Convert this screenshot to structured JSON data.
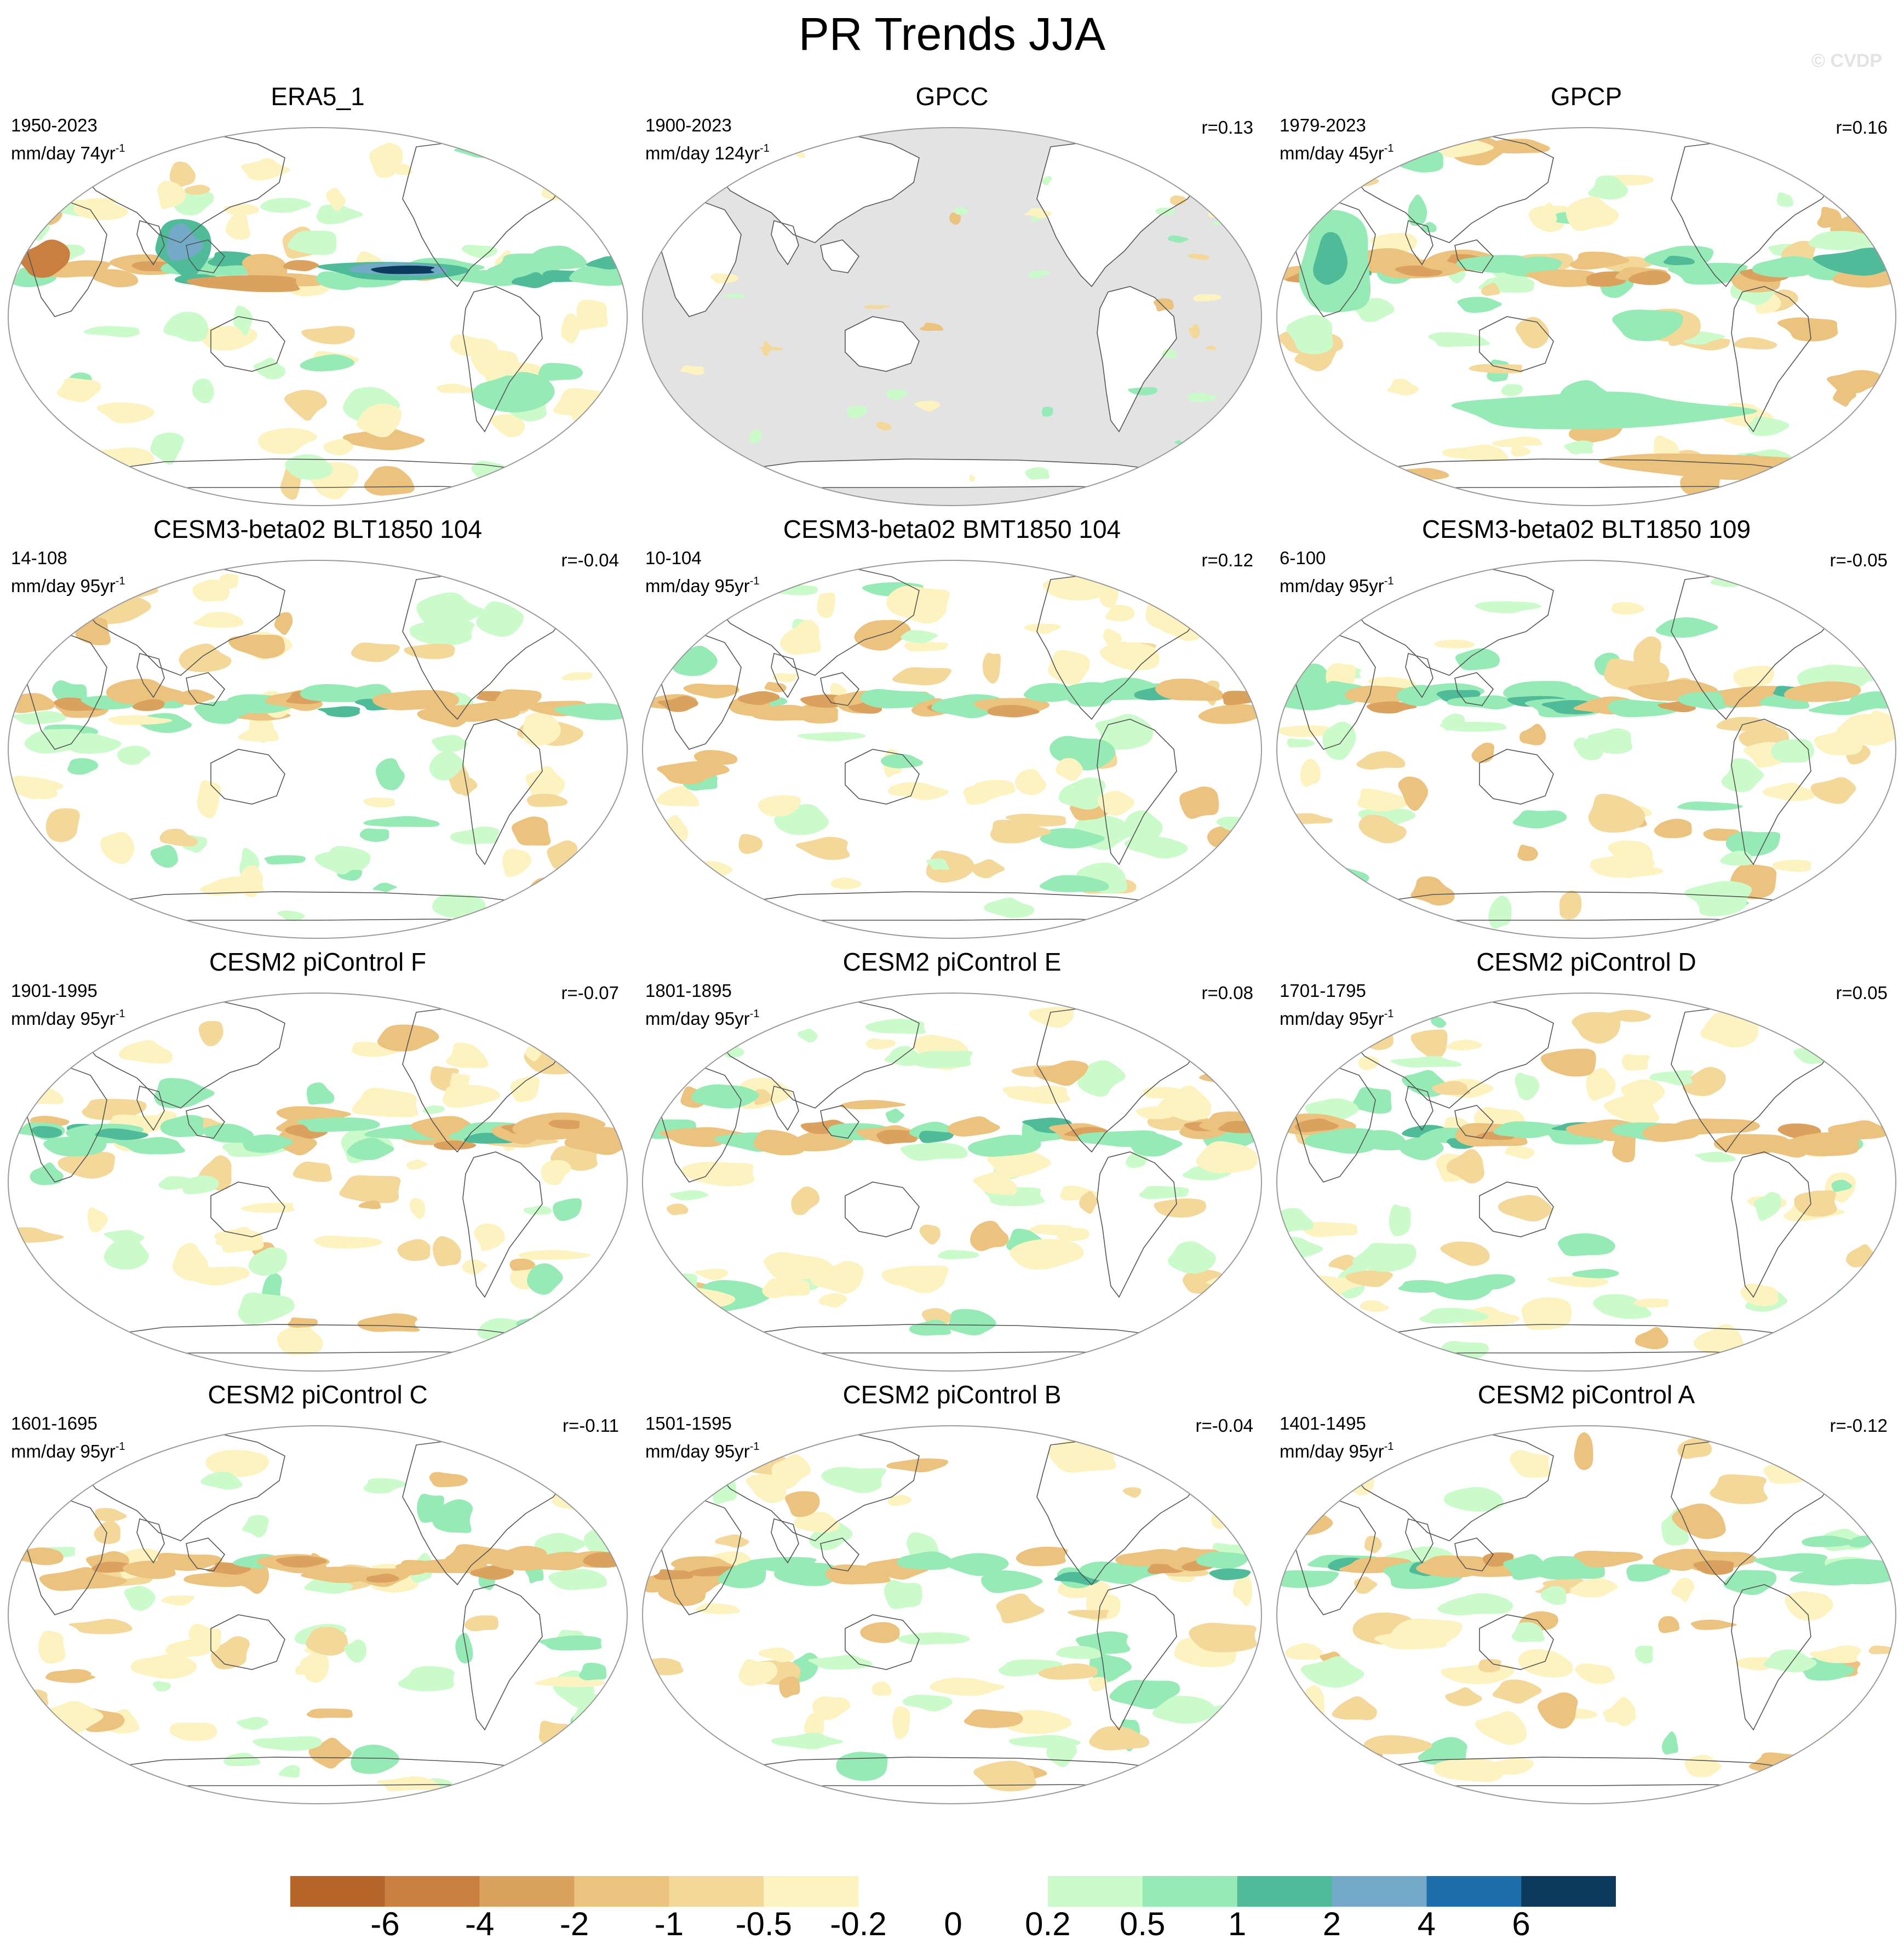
{
  "title": "PR Trends JJA",
  "watermark": "© CVDP",
  "panels": [
    {
      "name": "ERA5_1",
      "period": "1950-2023",
      "units": "mm/day 74yr",
      "units_sup": "-1",
      "r": "",
      "land_only": false,
      "style": "era5"
    },
    {
      "name": "GPCC",
      "period": "1900-2023",
      "units": "mm/day 124yr",
      "units_sup": "-1",
      "r": "r=0.13",
      "land_only": true,
      "style": "gpcc"
    },
    {
      "name": "GPCP",
      "period": "1979-2023",
      "units": "mm/day 45yr",
      "units_sup": "-1",
      "r": "r=0.16",
      "land_only": false,
      "style": "gpcp"
    },
    {
      "name": "CESM3-beta02 BLT1850 104",
      "period": "14-108",
      "units": "mm/day 95yr",
      "units_sup": "-1",
      "r": "r=-0.04",
      "land_only": false,
      "style": "model"
    },
    {
      "name": "CESM3-beta02 BMT1850 104",
      "period": "10-104",
      "units": "mm/day 95yr",
      "units_sup": "-1",
      "r": "r=0.12",
      "land_only": false,
      "style": "model"
    },
    {
      "name": "CESM3-beta02 BLT1850 109",
      "period": "6-100",
      "units": "mm/day 95yr",
      "units_sup": "-1",
      "r": "r=-0.05",
      "land_only": false,
      "style": "model"
    },
    {
      "name": "CESM2 piControl F",
      "period": "1901-1995",
      "units": "mm/day 95yr",
      "units_sup": "-1",
      "r": "r=-0.07",
      "land_only": false,
      "style": "model"
    },
    {
      "name": "CESM2 piControl E",
      "period": "1801-1895",
      "units": "mm/day 95yr",
      "units_sup": "-1",
      "r": "r=0.08",
      "land_only": false,
      "style": "model"
    },
    {
      "name": "CESM2 piControl D",
      "period": "1701-1795",
      "units": "mm/day 95yr",
      "units_sup": "-1",
      "r": "r=0.05",
      "land_only": false,
      "style": "model"
    },
    {
      "name": "CESM2 piControl C",
      "period": "1601-1695",
      "units": "mm/day 95yr",
      "units_sup": "-1",
      "r": "r=-0.11",
      "land_only": false,
      "style": "model"
    },
    {
      "name": "CESM2 piControl B",
      "period": "1501-1595",
      "units": "mm/day 95yr",
      "units_sup": "-1",
      "r": "r=-0.04",
      "land_only": false,
      "style": "model"
    },
    {
      "name": "CESM2 piControl A",
      "period": "1401-1495",
      "units": "mm/day 95yr",
      "units_sup": "-1",
      "r": "r=-0.12",
      "land_only": false,
      "style": "model"
    }
  ],
  "colorbar": {
    "colors": [
      "#b5652a",
      "#c97f3f",
      "#dba15f",
      "#ecc27f",
      "#f3d89a",
      "#fdf3c0",
      "#ffffff",
      "#ffffff",
      "#cbfacb",
      "#96eab6",
      "#4fbb98",
      "#74a9c8",
      "#1e6eac",
      "#0c3a5c"
    ],
    "labels": [
      "-6",
      "-4",
      "-2",
      "-1",
      "-0.5",
      "-0.2",
      "0",
      "0.2",
      "0.5",
      "1",
      "2",
      "4",
      "6"
    ]
  },
  "colors": {
    "coast": "#555555",
    "border": "#9a9a9a",
    "missing": "#e3e3e3"
  }
}
